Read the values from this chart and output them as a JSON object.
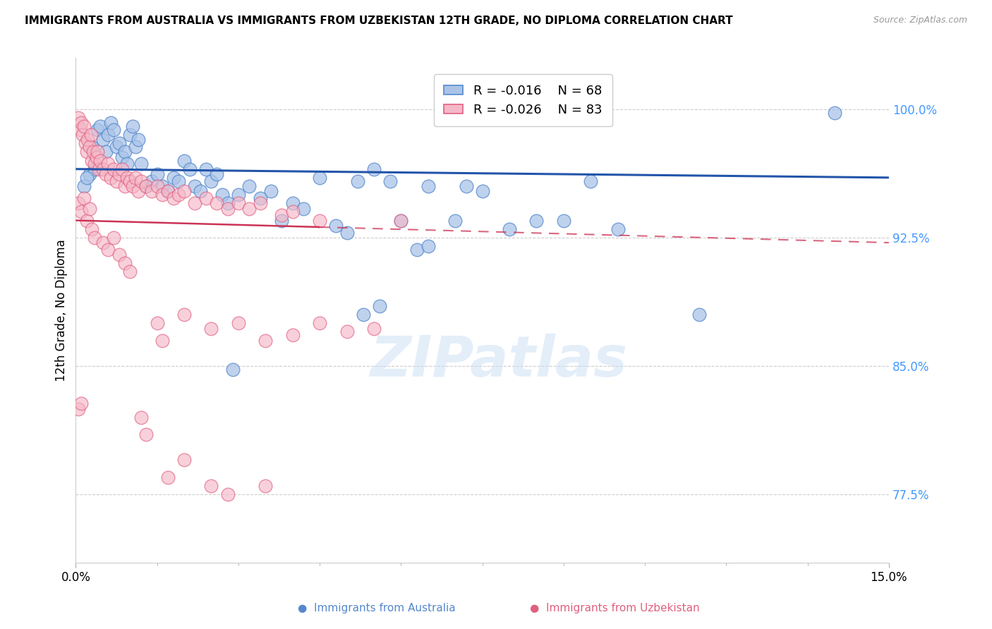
{
  "title": "IMMIGRANTS FROM AUSTRALIA VS IMMIGRANTS FROM UZBEKISTAN 12TH GRADE, NO DIPLOMA CORRELATION CHART",
  "source": "Source: ZipAtlas.com",
  "ylabel": "12th Grade, No Diploma",
  "yticks": [
    100.0,
    92.5,
    85.0,
    77.5
  ],
  "xlim": [
    0.0,
    15.0
  ],
  "ylim": [
    73.5,
    103.0
  ],
  "legend_blue_r": "-0.016",
  "legend_blue_n": "68",
  "legend_pink_r": "-0.026",
  "legend_pink_n": "83",
  "watermark": "ZIPatlas",
  "blue_scatter_color": "#aac4e8",
  "blue_edge_color": "#5588cc",
  "pink_scatter_color": "#f5b8c8",
  "pink_edge_color": "#e06080",
  "trendline_blue_color": "#2255aa",
  "trendline_pink_color": "#cc3355",
  "blue_trend_x0": 0.0,
  "blue_trend_y0": 96.5,
  "blue_trend_x1": 15.0,
  "blue_trend_y1": 96.0,
  "pink_trend_x0": 0.0,
  "pink_trend_y0": 93.5,
  "pink_trend_x1": 15.0,
  "pink_trend_y1": 92.2,
  "pink_solid_end": 4.5,
  "blue_scatter": [
    [
      0.25,
      96.2
    ],
    [
      0.3,
      97.8
    ],
    [
      0.35,
      96.5
    ],
    [
      0.4,
      98.8
    ],
    [
      0.45,
      99.0
    ],
    [
      0.5,
      98.2
    ],
    [
      0.55,
      97.5
    ],
    [
      0.6,
      98.5
    ],
    [
      0.65,
      99.2
    ],
    [
      0.7,
      98.8
    ],
    [
      0.75,
      97.8
    ],
    [
      0.8,
      98.0
    ],
    [
      0.85,
      97.2
    ],
    [
      0.9,
      97.5
    ],
    [
      0.95,
      96.8
    ],
    [
      1.0,
      98.5
    ],
    [
      1.05,
      99.0
    ],
    [
      1.1,
      97.8
    ],
    [
      1.15,
      98.2
    ],
    [
      1.2,
      96.8
    ],
    [
      1.3,
      95.5
    ],
    [
      1.4,
      95.8
    ],
    [
      1.5,
      96.2
    ],
    [
      1.6,
      95.5
    ],
    [
      1.7,
      95.2
    ],
    [
      1.8,
      96.0
    ],
    [
      1.9,
      95.8
    ],
    [
      2.0,
      97.0
    ],
    [
      2.1,
      96.5
    ],
    [
      2.2,
      95.5
    ],
    [
      2.3,
      95.2
    ],
    [
      2.4,
      96.5
    ],
    [
      2.5,
      95.8
    ],
    [
      2.6,
      96.2
    ],
    [
      2.7,
      95.0
    ],
    [
      2.8,
      94.5
    ],
    [
      3.0,
      95.0
    ],
    [
      3.2,
      95.5
    ],
    [
      3.4,
      94.8
    ],
    [
      3.6,
      95.2
    ],
    [
      4.0,
      94.5
    ],
    [
      4.2,
      94.2
    ],
    [
      4.5,
      96.0
    ],
    [
      5.2,
      95.8
    ],
    [
      5.5,
      96.5
    ],
    [
      5.8,
      95.8
    ],
    [
      6.5,
      95.5
    ],
    [
      7.5,
      95.2
    ],
    [
      9.5,
      95.8
    ],
    [
      0.15,
      95.5
    ],
    [
      0.2,
      96.0
    ],
    [
      3.8,
      93.5
    ],
    [
      4.8,
      93.2
    ],
    [
      5.0,
      92.8
    ],
    [
      6.0,
      93.5
    ],
    [
      6.3,
      91.8
    ],
    [
      6.5,
      92.0
    ],
    [
      7.0,
      93.5
    ],
    [
      8.0,
      93.0
    ],
    [
      8.5,
      93.5
    ],
    [
      9.0,
      93.5
    ],
    [
      10.0,
      93.0
    ],
    [
      2.9,
      84.8
    ],
    [
      5.3,
      88.0
    ],
    [
      5.6,
      88.5
    ],
    [
      11.5,
      88.0
    ],
    [
      14.0,
      99.8
    ],
    [
      7.2,
      95.5
    ]
  ],
  "pink_scatter": [
    [
      0.05,
      99.5
    ],
    [
      0.08,
      98.8
    ],
    [
      0.1,
      99.2
    ],
    [
      0.12,
      98.5
    ],
    [
      0.15,
      99.0
    ],
    [
      0.18,
      98.0
    ],
    [
      0.2,
      97.5
    ],
    [
      0.22,
      98.2
    ],
    [
      0.25,
      97.8
    ],
    [
      0.28,
      98.5
    ],
    [
      0.3,
      97.0
    ],
    [
      0.32,
      97.5
    ],
    [
      0.35,
      96.8
    ],
    [
      0.38,
      97.2
    ],
    [
      0.4,
      97.5
    ],
    [
      0.42,
      96.5
    ],
    [
      0.45,
      97.0
    ],
    [
      0.5,
      96.5
    ],
    [
      0.55,
      96.2
    ],
    [
      0.6,
      96.8
    ],
    [
      0.65,
      96.0
    ],
    [
      0.7,
      96.5
    ],
    [
      0.75,
      95.8
    ],
    [
      0.8,
      96.2
    ],
    [
      0.85,
      96.5
    ],
    [
      0.9,
      95.5
    ],
    [
      0.95,
      96.0
    ],
    [
      1.0,
      95.8
    ],
    [
      1.05,
      95.5
    ],
    [
      1.1,
      96.0
    ],
    [
      1.15,
      95.2
    ],
    [
      1.2,
      95.8
    ],
    [
      1.3,
      95.5
    ],
    [
      1.4,
      95.2
    ],
    [
      1.5,
      95.5
    ],
    [
      1.6,
      95.0
    ],
    [
      1.7,
      95.2
    ],
    [
      1.8,
      94.8
    ],
    [
      1.9,
      95.0
    ],
    [
      2.0,
      95.2
    ],
    [
      2.2,
      94.5
    ],
    [
      2.4,
      94.8
    ],
    [
      2.6,
      94.5
    ],
    [
      2.8,
      94.2
    ],
    [
      3.0,
      94.5
    ],
    [
      3.2,
      94.2
    ],
    [
      3.4,
      94.5
    ],
    [
      3.8,
      93.8
    ],
    [
      4.0,
      94.0
    ],
    [
      4.5,
      93.5
    ],
    [
      0.05,
      94.5
    ],
    [
      0.1,
      94.0
    ],
    [
      0.15,
      94.8
    ],
    [
      0.2,
      93.5
    ],
    [
      0.25,
      94.2
    ],
    [
      0.3,
      93.0
    ],
    [
      0.35,
      92.5
    ],
    [
      0.5,
      92.2
    ],
    [
      0.6,
      91.8
    ],
    [
      0.7,
      92.5
    ],
    [
      0.8,
      91.5
    ],
    [
      0.9,
      91.0
    ],
    [
      1.0,
      90.5
    ],
    [
      1.5,
      87.5
    ],
    [
      1.6,
      86.5
    ],
    [
      2.0,
      88.0
    ],
    [
      2.5,
      87.2
    ],
    [
      3.0,
      87.5
    ],
    [
      3.5,
      86.5
    ],
    [
      4.0,
      86.8
    ],
    [
      4.5,
      87.5
    ],
    [
      5.0,
      87.0
    ],
    [
      5.5,
      87.2
    ],
    [
      1.2,
      82.0
    ],
    [
      1.3,
      81.0
    ],
    [
      1.7,
      78.5
    ],
    [
      2.0,
      79.5
    ],
    [
      2.5,
      78.0
    ],
    [
      2.8,
      77.5
    ],
    [
      3.5,
      78.0
    ],
    [
      6.0,
      93.5
    ],
    [
      0.05,
      82.5
    ],
    [
      0.1,
      82.8
    ]
  ]
}
